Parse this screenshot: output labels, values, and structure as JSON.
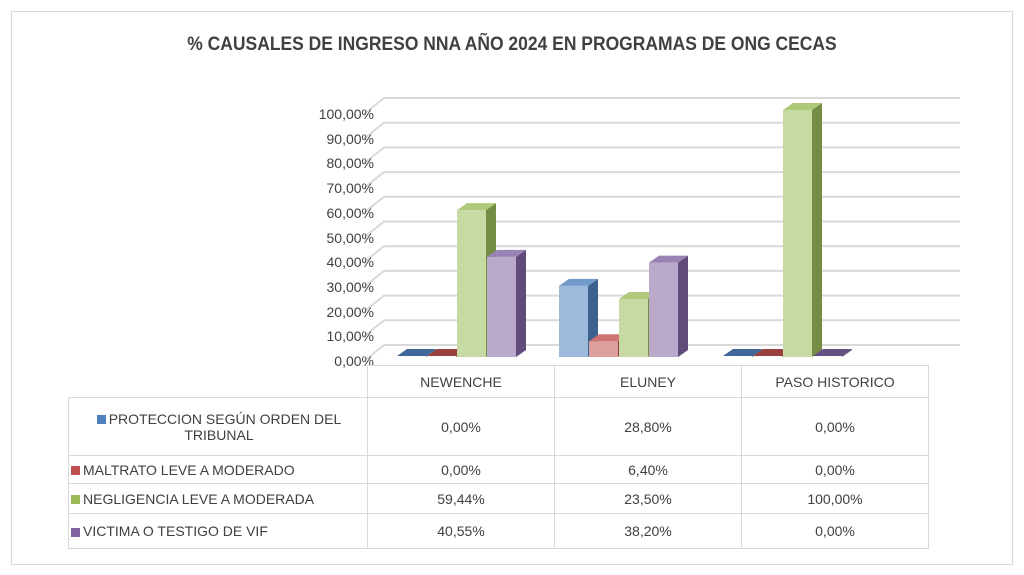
{
  "chart_data": {
    "type": "bar",
    "title": "% CAUSALES DE INGRESO NNA AÑO 2024 EN PROGRAMAS DE ONG CECAS",
    "categories": [
      "NEWENCHE",
      "ELUNEY",
      "PASO HISTORICO"
    ],
    "series": [
      {
        "name": "PROTECCION SEGÚN ORDEN DEL TRIBUNAL",
        "values": [
          0.0,
          28.8,
          0.0
        ],
        "labels": [
          "0,00%",
          "28,80%",
          "0,00%"
        ],
        "color": "#4f81bd"
      },
      {
        "name": "MALTRATO  LEVE A MODERADO",
        "values": [
          0.0,
          6.4,
          0.0
        ],
        "labels": [
          "0,00%",
          "6,40%",
          "0,00%"
        ],
        "color": "#c0504d"
      },
      {
        "name": "NEGLIGENCIA  LEVE A MODERADA",
        "values": [
          59.44,
          23.5,
          100.0
        ],
        "labels": [
          "59,44%",
          "23,50%",
          "100,00%"
        ],
        "color": "#9bbb59"
      },
      {
        "name": "VICTIMA O TESTIGO DE VIF",
        "values": [
          40.55,
          38.2,
          0.0
        ],
        "labels": [
          "40,55%",
          "38,20%",
          "0,00%"
        ],
        "color": "#8064a2"
      }
    ],
    "yticks": [
      "0,00%",
      "10,00%",
      "20,00%",
      "30,00%",
      "40,00%",
      "50,00%",
      "60,00%",
      "70,00%",
      "80,00%",
      "90,00%",
      "100,00%"
    ],
    "ylim": [
      0,
      100
    ],
    "grid": true,
    "legend": "data-table"
  }
}
